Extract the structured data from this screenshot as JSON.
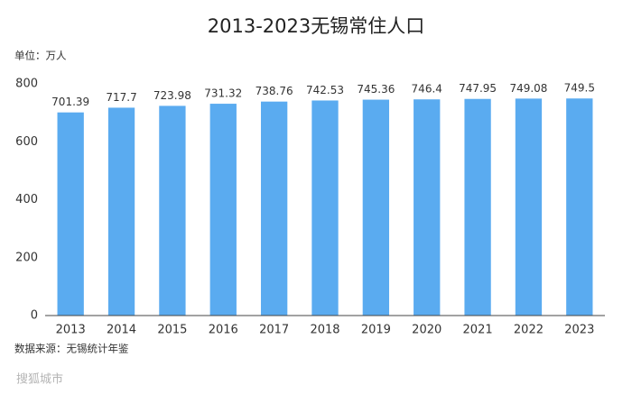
{
  "chart_data": {
    "type": "bar",
    "title": "2013-2023无锡常住人口",
    "unit_label": "单位：万人",
    "source": "数据来源：无锡统计年鉴",
    "watermark": "搜狐城市",
    "categories": [
      "2013",
      "2014",
      "2015",
      "2016",
      "2017",
      "2018",
      "2019",
      "2020",
      "2021",
      "2022",
      "2023"
    ],
    "values": [
      701.39,
      717.7,
      723.98,
      731.32,
      738.76,
      742.53,
      745.36,
      746.4,
      747.95,
      749.08,
      749.5
    ],
    "color": "#5aabf0",
    "ylim": [
      0,
      800
    ],
    "yticks": [
      0,
      200,
      400,
      600,
      800
    ],
    "grid": false
  }
}
